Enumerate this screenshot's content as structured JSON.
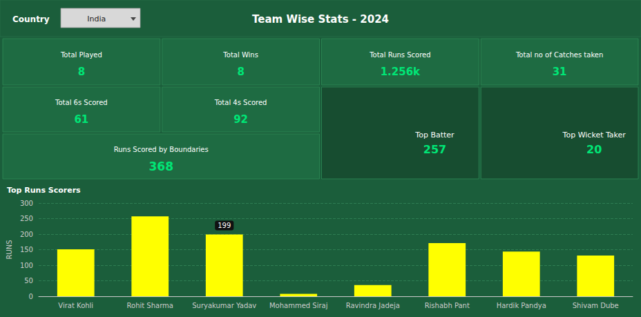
{
  "chart_data": {
    "type": "bar",
    "title": "Team Wise Stats - 2024",
    "subtitle": "Top Runs Scorers",
    "filter": {
      "label": "Country",
      "value": "India"
    },
    "stats": [
      {
        "label": "Total Played",
        "value": "8"
      },
      {
        "label": "Total Wins",
        "value": "8"
      },
      {
        "label": "Total Runs Scored",
        "value": "1.256k"
      },
      {
        "label": "Total no of Catches taken",
        "value": "31"
      },
      {
        "label": "Total 6s Scored",
        "value": "61"
      },
      {
        "label": "Total 4s Scored",
        "value": "92"
      },
      {
        "label": "Runs Scored by Boundaries",
        "value": "368"
      },
      {
        "label": "Top Batter",
        "value": "257"
      },
      {
        "label": "Top Wicket Taker",
        "value": "20"
      }
    ],
    "ylabel": "RUNS",
    "categories": [
      "Virat Kohli",
      "Rohit Sharma",
      "Suryakumar Yadav",
      "Mohammed Siraj",
      "Ravindra Jadeja",
      "Rishabh Pant",
      "Hardik Pandya",
      "Shivam Dube"
    ],
    "values": [
      151,
      257,
      199,
      8,
      36,
      171,
      144,
      131
    ],
    "color": "#ffff00",
    "ylim": [
      0,
      300
    ],
    "yticks": [
      0,
      50,
      100,
      150,
      200,
      250,
      300
    ],
    "grid": true,
    "annotations": [
      {
        "text": "199",
        "category": "Suryakumar Yadav"
      }
    ]
  }
}
